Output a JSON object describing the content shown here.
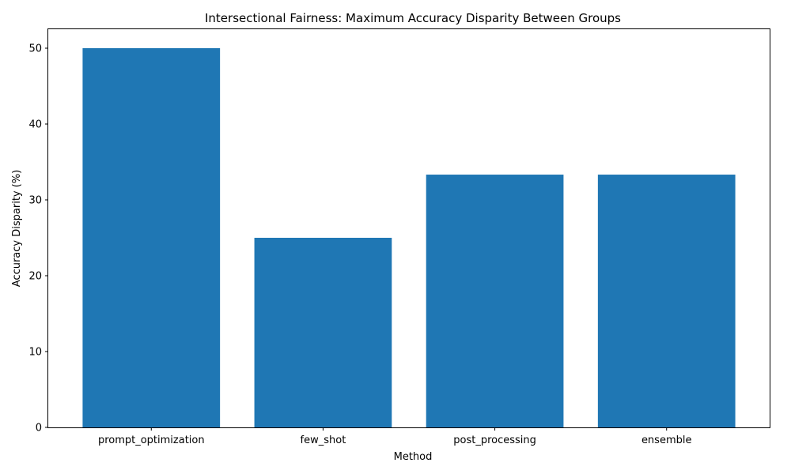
{
  "chart_data": {
    "type": "bar",
    "title": "Intersectional Fairness: Maximum Accuracy Disparity Between Groups",
    "xlabel": "Method",
    "ylabel": "Accuracy Disparity (%)",
    "categories": [
      "prompt_optimization",
      "few_shot",
      "post_processing",
      "ensemble"
    ],
    "values": [
      50.0,
      25.0,
      33.33,
      33.33
    ],
    "ylim": [
      0,
      52.5
    ],
    "yticks": [
      0,
      10,
      20,
      30,
      40,
      50
    ],
    "grid": false,
    "legend": "none",
    "bar_color": "#1f77b4"
  }
}
